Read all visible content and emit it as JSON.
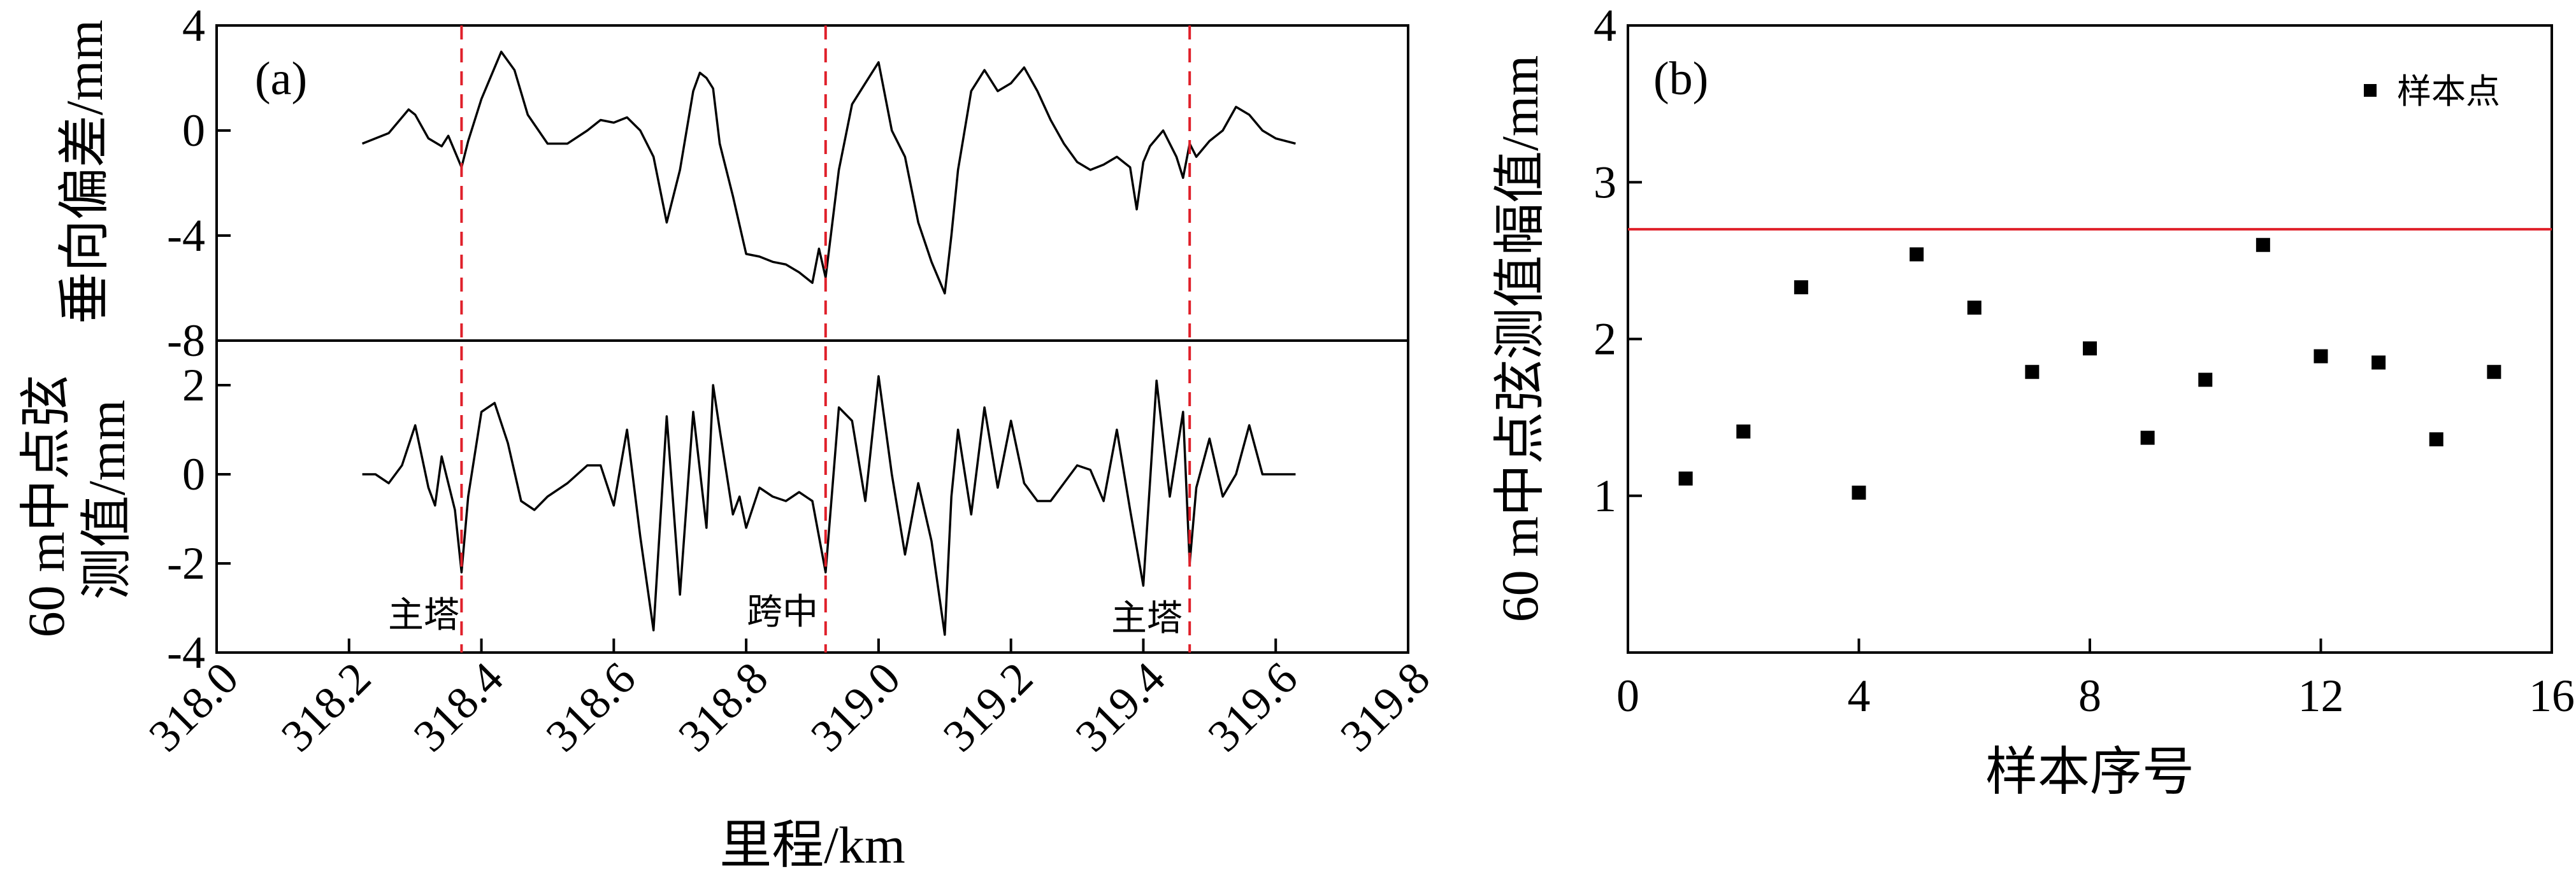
{
  "chart_data": [
    {
      "panel": "(a)",
      "type": "line",
      "xlabel": "里程/km",
      "xlim": [
        318.0,
        319.8
      ],
      "xticks": [
        "318.0",
        "318.2",
        "318.4",
        "318.6",
        "318.8",
        "319.0",
        "319.2",
        "319.4",
        "319.6",
        "319.8"
      ],
      "tower_lines": [
        318.37,
        318.92,
        319.47
      ],
      "tower_line_color": "#e0202a",
      "annotations": [
        {
          "text": "主塔",
          "x": 318.37
        },
        {
          "text": "跨中",
          "x": 318.92
        },
        {
          "text": "主塔",
          "x": 319.47
        }
      ],
      "subplots": [
        {
          "name": "top",
          "ylabel": "垂向偏差/mm",
          "ylim": [
            -8,
            4
          ],
          "yticks": [
            "4",
            "0",
            "-4",
            "-8"
          ],
          "series": [
            {
              "x": [
                318.22,
                318.26,
                318.29,
                318.3,
                318.32,
                318.34,
                318.35,
                318.37,
                318.38,
                318.4,
                318.43,
                318.45,
                318.47,
                318.5,
                318.53,
                318.56,
                318.58,
                318.6,
                318.62,
                318.64,
                318.66,
                318.68,
                318.7,
                318.72,
                318.73,
                318.74,
                318.75,
                318.76,
                318.78,
                318.8,
                318.82,
                318.84,
                318.86,
                318.88,
                318.9,
                318.91,
                318.92,
                318.94,
                318.96,
                318.98,
                319.0,
                319.02,
                319.04,
                319.06,
                319.08,
                319.1,
                319.11,
                319.12,
                319.14,
                319.16,
                319.18,
                319.2,
                319.22,
                319.24,
                319.26,
                319.28,
                319.3,
                319.32,
                319.34,
                319.36,
                319.38,
                319.39,
                319.4,
                319.41,
                319.43,
                319.45,
                319.46,
                319.47,
                319.48,
                319.5,
                319.52,
                319.54,
                319.56,
                319.58,
                319.6,
                319.63
              ],
              "y": [
                -0.5,
                -0.1,
                0.8,
                0.6,
                -0.3,
                -0.6,
                -0.2,
                -1.4,
                -0.4,
                1.2,
                3.0,
                2.3,
                0.6,
                -0.5,
                -0.5,
                0.0,
                0.4,
                0.3,
                0.5,
                0.0,
                -1.0,
                -3.5,
                -1.5,
                1.5,
                2.2,
                2.0,
                1.6,
                -0.5,
                -2.5,
                -4.7,
                -4.8,
                -5.0,
                -5.1,
                -5.4,
                -5.8,
                -4.5,
                -5.6,
                -1.5,
                1.0,
                1.8,
                2.6,
                0.0,
                -1.0,
                -3.5,
                -5.0,
                -6.2,
                -4.0,
                -1.5,
                1.5,
                2.3,
                1.5,
                1.8,
                2.4,
                1.5,
                0.4,
                -0.5,
                -1.2,
                -1.5,
                -1.3,
                -1.0,
                -1.4,
                -3.0,
                -1.2,
                -0.6,
                0.0,
                -1.0,
                -1.8,
                -0.5,
                -1.0,
                -0.4,
                0.0,
                0.9,
                0.6,
                0.0,
                -0.3,
                -0.5
              ]
            }
          ]
        },
        {
          "name": "bottom",
          "ylabel": "60 m中点弦测值/mm",
          "ylim": [
            -4,
            3
          ],
          "yticks": [
            "2",
            "0",
            "-2",
            "-4"
          ],
          "series": [
            {
              "x": [
                318.22,
                318.24,
                318.26,
                318.28,
                318.3,
                318.32,
                318.33,
                318.34,
                318.36,
                318.37,
                318.38,
                318.4,
                318.42,
                318.44,
                318.46,
                318.48,
                318.5,
                318.53,
                318.56,
                318.58,
                318.6,
                318.62,
                318.64,
                318.66,
                318.68,
                318.7,
                318.72,
                318.74,
                318.75,
                318.76,
                318.78,
                318.79,
                318.8,
                318.82,
                318.84,
                318.86,
                318.88,
                318.9,
                318.92,
                318.94,
                318.96,
                318.98,
                319.0,
                319.02,
                319.04,
                319.06,
                319.08,
                319.1,
                319.11,
                319.12,
                319.14,
                319.16,
                319.18,
                319.2,
                319.22,
                319.24,
                319.26,
                319.28,
                319.3,
                319.32,
                319.34,
                319.36,
                319.38,
                319.4,
                319.42,
                319.44,
                319.46,
                319.47,
                319.48,
                319.5,
                319.52,
                319.54,
                319.56,
                319.58,
                319.6,
                319.63
              ],
              "y": [
                0,
                0,
                -0.2,
                0.2,
                1.1,
                -0.3,
                -0.7,
                0.4,
                -0.8,
                -2.2,
                -0.5,
                1.4,
                1.6,
                0.7,
                -0.6,
                -0.8,
                -0.5,
                -0.2,
                0.2,
                0.2,
                -0.7,
                1.0,
                -1.4,
                -3.5,
                1.3,
                -2.7,
                1.4,
                -1.2,
                2.0,
                1.0,
                -0.9,
                -0.5,
                -1.2,
                -0.3,
                -0.5,
                -0.6,
                -0.4,
                -0.6,
                -2.2,
                1.5,
                1.2,
                -0.6,
                2.2,
                0.0,
                -1.8,
                -0.2,
                -1.5,
                -3.6,
                -0.5,
                1.0,
                -0.9,
                1.5,
                -0.3,
                1.2,
                -0.2,
                -0.6,
                -0.6,
                -0.2,
                0.2,
                0.1,
                -0.6,
                1.0,
                -0.8,
                -2.5,
                2.1,
                -0.5,
                1.4,
                -2.0,
                -0.3,
                0.8,
                -0.5,
                0.0,
                1.1,
                0.0,
                0.0,
                0.0
              ]
            }
          ]
        }
      ]
    },
    {
      "panel": "(b)",
      "type": "scatter",
      "xlabel": "样本序号",
      "ylabel": "60 m中点弦测值幅值/mm",
      "xlim": [
        0,
        16
      ],
      "ylim": [
        0,
        4
      ],
      "xticks": [
        "0",
        "4",
        "8",
        "12",
        "16"
      ],
      "yticks": [
        "4",
        "3",
        "2",
        "1"
      ],
      "legend": {
        "label": "样本点",
        "position": "top-right"
      },
      "threshold": {
        "y": 2.7,
        "color": "#e0202a"
      },
      "series": [
        {
          "name": "样本点",
          "x": [
            1,
            2,
            3,
            4,
            5,
            6,
            7,
            8,
            9,
            10,
            11,
            12,
            13,
            14,
            15
          ],
          "y": [
            1.11,
            1.41,
            2.33,
            1.02,
            2.54,
            2.2,
            1.79,
            1.94,
            1.37,
            1.74,
            2.6,
            1.89,
            1.85,
            1.36,
            1.79
          ]
        }
      ]
    }
  ]
}
